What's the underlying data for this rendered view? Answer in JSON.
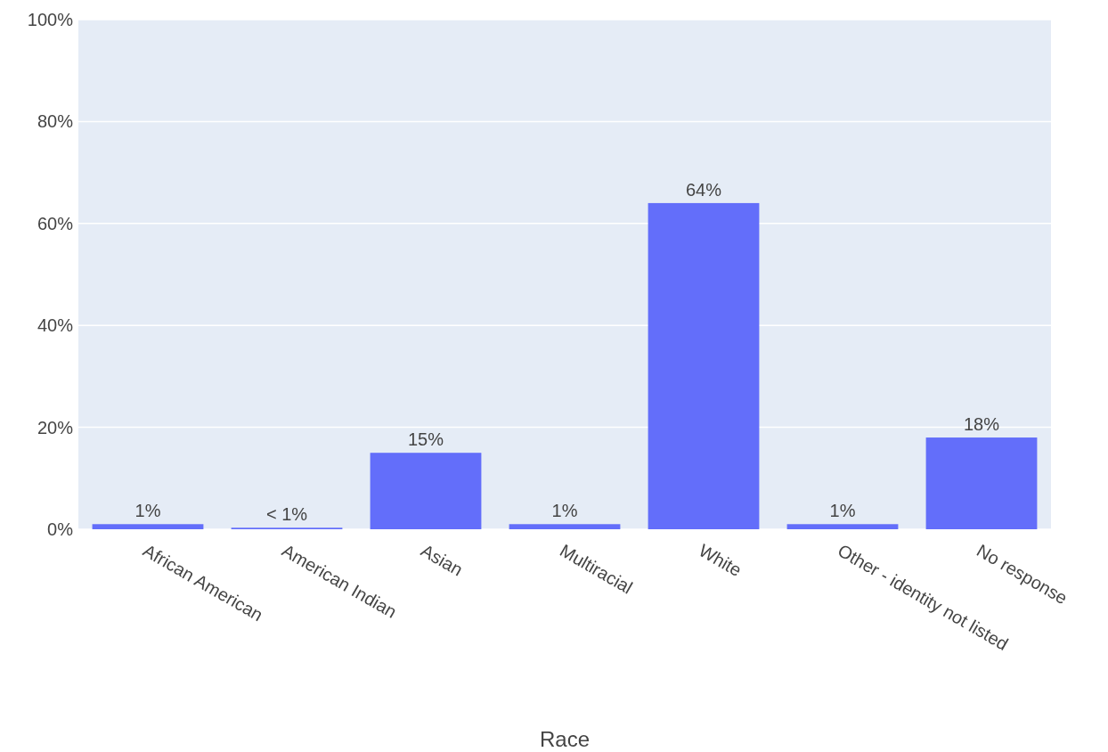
{
  "chart_data": {
    "type": "bar",
    "xlabel": "Race",
    "categories": [
      "African American",
      "American Indian",
      "Asian",
      "Multiracial",
      "White",
      "Other - identity not listed",
      "No response"
    ],
    "values": [
      1,
      0.3,
      15,
      1,
      64,
      1,
      18
    ],
    "value_labels": [
      "1%",
      "< 1%",
      "15%",
      "1%",
      "64%",
      "1%",
      "18%"
    ],
    "color": "#636efa",
    "ylim": [
      0,
      100
    ],
    "yticks": [
      {
        "value": 0,
        "label": "0%"
      },
      {
        "value": 20,
        "label": "20%"
      },
      {
        "value": 40,
        "label": "40%"
      },
      {
        "value": 60,
        "label": "60%"
      },
      {
        "value": 80,
        "label": "80%"
      },
      {
        "value": 100,
        "label": "100%"
      }
    ],
    "grid": "y"
  }
}
